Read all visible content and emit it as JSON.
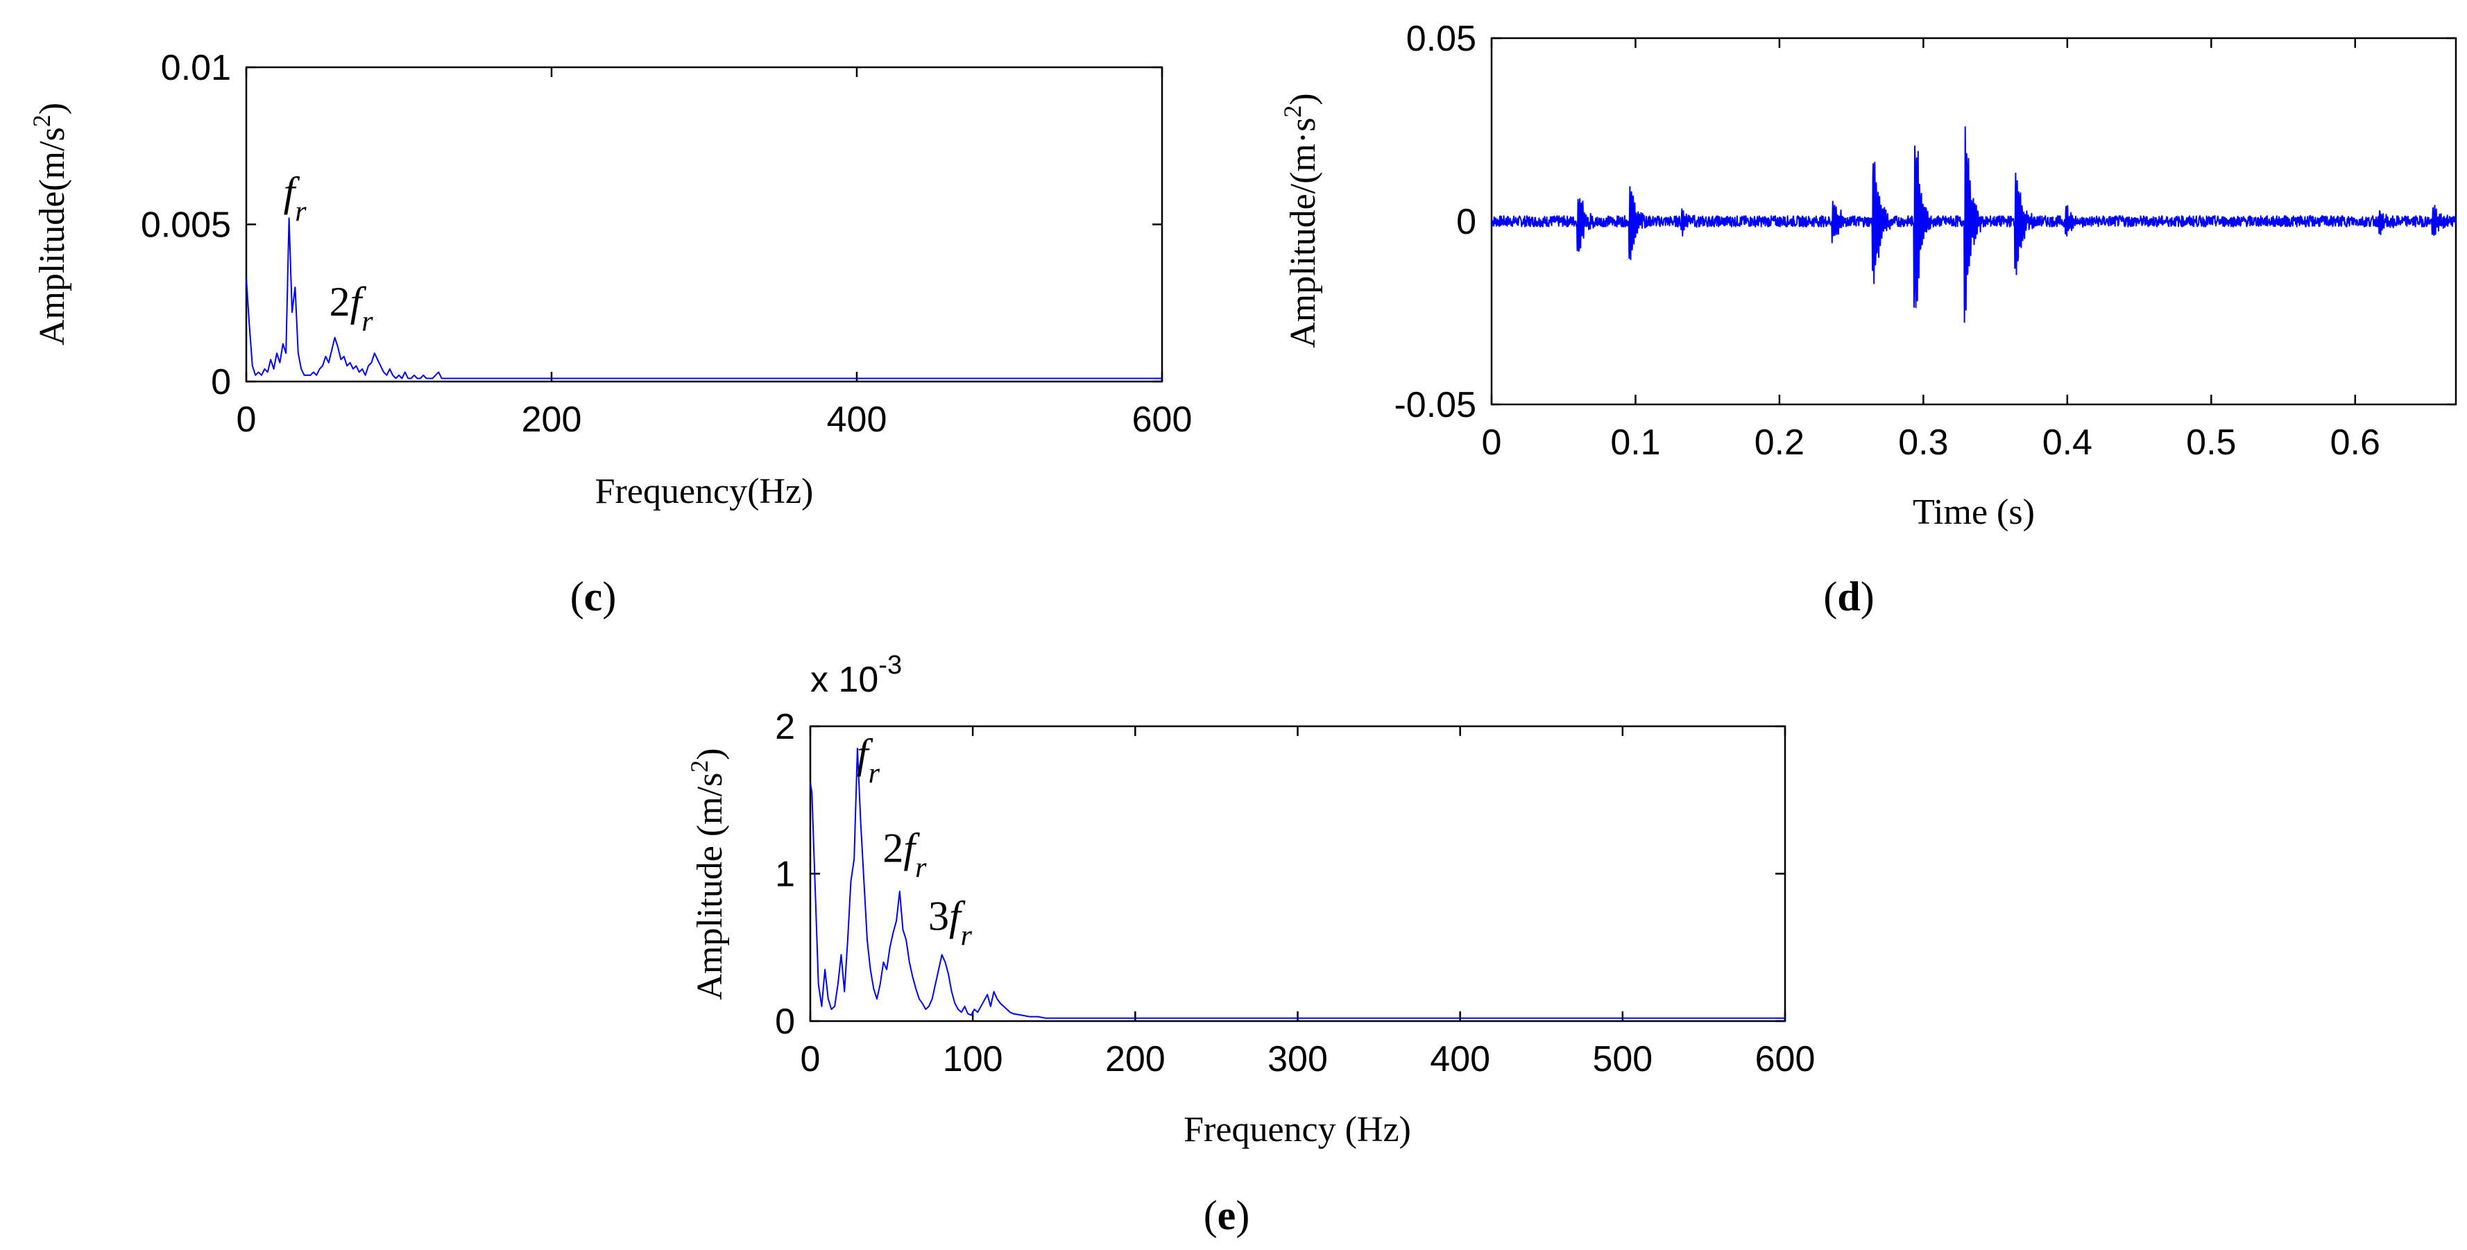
{
  "colors": {
    "signal": "#0000ff",
    "axis": "#000000",
    "background": "#ffffff"
  },
  "chart_data": [
    {
      "id": "c",
      "type": "line",
      "panel_label": "c",
      "xlabel": "Frequency(Hz)",
      "ylabel": "Amplitude(m/s²)",
      "ylabel_plain": "Amplitude(m/s",
      "ylabel_sup": "2",
      "ylabel_close": ")",
      "xlim": [
        0,
        600
      ],
      "ylim": [
        0,
        0.01
      ],
      "xticks": [
        0,
        200,
        400,
        600
      ],
      "xtick_labels": [
        "0",
        "200",
        "400",
        "600"
      ],
      "yticks": [
        0,
        0.005,
        0.01
      ],
      "ytick_labels": [
        "0",
        "0.005",
        "0.01"
      ],
      "annotations": [
        {
          "prefix": "",
          "base": "f",
          "sub": "r",
          "x": 28,
          "y": 0.0056
        },
        {
          "prefix": "2",
          "base": "f",
          "sub": "r",
          "x": 58,
          "y": 0.0021
        }
      ],
      "series": [
        {
          "name": "spectrum",
          "x": [
            0,
            2,
            4,
            6,
            8,
            10,
            12,
            14,
            16,
            18,
            20,
            22,
            24,
            26,
            28,
            30,
            32,
            34,
            36,
            38,
            40,
            42,
            44,
            46,
            48,
            50,
            52,
            54,
            56,
            58,
            60,
            62,
            64,
            66,
            68,
            70,
            72,
            74,
            76,
            78,
            80,
            82,
            84,
            86,
            88,
            90,
            92,
            94,
            96,
            98,
            100,
            102,
            104,
            106,
            108,
            110,
            112,
            114,
            116,
            118,
            120,
            122,
            124,
            126,
            128,
            130,
            135,
            140,
            150,
            200,
            300,
            400,
            500,
            600
          ],
          "y": [
            0.0033,
            0.0018,
            0.0005,
            0.0002,
            0.0003,
            0.0002,
            0.0004,
            0.0003,
            0.0007,
            0.0004,
            0.0009,
            0.0006,
            0.0012,
            0.0009,
            0.0052,
            0.0022,
            0.003,
            0.0009,
            0.0004,
            0.0002,
            0.0002,
            0.0002,
            0.0003,
            0.0002,
            0.0004,
            0.0005,
            0.0008,
            0.0006,
            0.001,
            0.0014,
            0.0011,
            0.0007,
            0.0008,
            0.0005,
            0.0006,
            0.0004,
            0.0005,
            0.0003,
            0.0004,
            0.0002,
            0.0005,
            0.0006,
            0.0009,
            0.0007,
            0.0005,
            0.0003,
            0.0002,
            0.0004,
            0.0002,
            0.0001,
            0.0002,
            0.0001,
            0.0003,
            0.0001,
            0.0001,
            0.0002,
            0.0001,
            0.0001,
            0.0002,
            0.0001,
            0.0001,
            0.0001,
            0.0002,
            0.0003,
            0.0001,
            0.0001,
            0.0001,
            0.0001,
            0.0001,
            0.0001,
            0.0001,
            0.0001,
            0.0001,
            0.0001
          ]
        }
      ]
    },
    {
      "id": "d",
      "type": "line",
      "panel_label": "d",
      "xlabel": "Time (s)",
      "ylabel": "Amplitude/(m·s²)",
      "ylabel_plain": "Amplitude/(m·s",
      "ylabel_sup": "2",
      "ylabel_close": ")",
      "xlim": [
        0,
        0.67
      ],
      "ylim": [
        -0.05,
        0.05
      ],
      "xticks": [
        0,
        0.1,
        0.2,
        0.3,
        0.4,
        0.5,
        0.6
      ],
      "xtick_labels": [
        "0",
        "0.1",
        "0.2",
        "0.3",
        "0.4",
        "0.5",
        "0.6"
      ],
      "yticks": [
        -0.05,
        0,
        0.05
      ],
      "ytick_labels": [
        "-0.05",
        "0",
        "0.05"
      ],
      "annotations": [],
      "bursts": [
        {
          "t": 0.061,
          "amp": 0.01
        },
        {
          "t": 0.097,
          "amp": 0.012
        },
        {
          "t": 0.133,
          "amp": 0.004
        },
        {
          "t": 0.238,
          "amp": 0.007
        },
        {
          "t": 0.266,
          "amp": 0.02
        },
        {
          "t": 0.295,
          "amp": 0.029
        },
        {
          "t": 0.33,
          "amp": 0.027
        },
        {
          "t": 0.365,
          "amp": 0.017
        },
        {
          "t": 0.4,
          "amp": 0.005
        },
        {
          "t": 0.618,
          "amp": 0.003
        },
        {
          "t": 0.655,
          "amp": 0.004
        }
      ],
      "noise_amplitude": 0.0015
    },
    {
      "id": "e",
      "type": "line",
      "panel_label": "e",
      "xlabel": "Frequency (Hz)",
      "ylabel": "Amplitude (m/s²)",
      "ylabel_plain": "Amplitude (m/s",
      "ylabel_sup": "2",
      "ylabel_close": ")",
      "scale_prefix": "x 10",
      "scale_exp": "-3",
      "xlim": [
        0,
        600
      ],
      "ylim": [
        0,
        2
      ],
      "xticks": [
        0,
        100,
        200,
        300,
        400,
        500,
        600
      ],
      "xtick_labels": [
        "0",
        "100",
        "200",
        "300",
        "400",
        "500",
        "600"
      ],
      "yticks": [
        0,
        1,
        2
      ],
      "ytick_labels": [
        "0",
        "1",
        "2"
      ],
      "annotations": [
        {
          "prefix": "",
          "base": "f",
          "sub": "r",
          "x": 32,
          "y": 1.72
        },
        {
          "prefix": "2",
          "base": "f",
          "sub": "r",
          "x": 48,
          "y": 1.08
        },
        {
          "prefix": "3",
          "base": "f",
          "sub": "r",
          "x": 76,
          "y": 0.62
        }
      ],
      "series": [
        {
          "name": "spectrum",
          "x": [
            0,
            1,
            3,
            5,
            7,
            9,
            11,
            13,
            15,
            17,
            19,
            21,
            23,
            25,
            27,
            29,
            31,
            33,
            35,
            37,
            39,
            41,
            43,
            45,
            47,
            49,
            51,
            53,
            55,
            57,
            59,
            61,
            63,
            65,
            67,
            69,
            71,
            73,
            75,
            77,
            79,
            81,
            83,
            85,
            87,
            89,
            91,
            93,
            95,
            97,
            99,
            101,
            103,
            105,
            107,
            109,
            111,
            113,
            115,
            117,
            119,
            121,
            123,
            125,
            130,
            135,
            140,
            145,
            150,
            155,
            160,
            200,
            300,
            400,
            500,
            600
          ],
          "y": [
            1.62,
            1.55,
            0.9,
            0.25,
            0.1,
            0.35,
            0.15,
            0.08,
            0.1,
            0.25,
            0.45,
            0.2,
            0.55,
            0.95,
            1.1,
            1.85,
            1.35,
            0.95,
            0.55,
            0.35,
            0.22,
            0.15,
            0.25,
            0.4,
            0.35,
            0.5,
            0.6,
            0.68,
            0.88,
            0.62,
            0.55,
            0.4,
            0.3,
            0.22,
            0.15,
            0.12,
            0.08,
            0.1,
            0.15,
            0.25,
            0.35,
            0.45,
            0.4,
            0.32,
            0.2,
            0.12,
            0.08,
            0.06,
            0.1,
            0.05,
            0.04,
            0.08,
            0.06,
            0.1,
            0.14,
            0.18,
            0.1,
            0.2,
            0.15,
            0.12,
            0.1,
            0.08,
            0.06,
            0.05,
            0.04,
            0.03,
            0.03,
            0.02,
            0.02,
            0.02,
            0.02,
            0.02,
            0.02,
            0.02,
            0.02,
            0.02
          ]
        }
      ]
    }
  ]
}
